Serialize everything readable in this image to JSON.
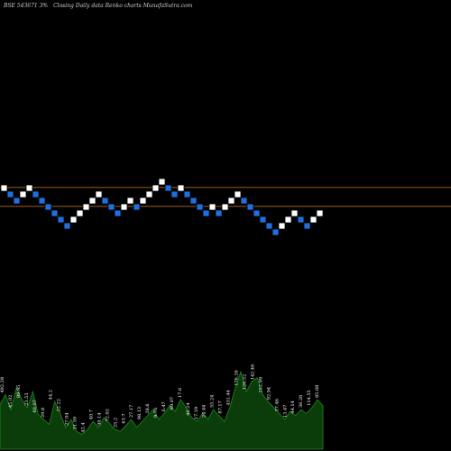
{
  "header": {
    "symbol": "BSE 543671 3%",
    "title": "Closing Daily data  Renko  charts MunafaSutra.com"
  },
  "colors": {
    "background": "#000000",
    "up_brick": "#ffffff",
    "down_brick": "#1e6fe0",
    "brick_border": "#000000",
    "level_line": "#b06a1e",
    "volume_fill": "#0b3d0b",
    "volume_stroke": "#1e8a1e"
  },
  "chart_data": {
    "type": "renko",
    "brick_size_percent": 3,
    "bricks": [
      {
        "dir": "up",
        "level": 21
      },
      {
        "dir": "down",
        "level": 20
      },
      {
        "dir": "down",
        "level": 19
      },
      {
        "dir": "up",
        "level": 20
      },
      {
        "dir": "up",
        "level": 21
      },
      {
        "dir": "down",
        "level": 20
      },
      {
        "dir": "down",
        "level": 19
      },
      {
        "dir": "down",
        "level": 18
      },
      {
        "dir": "down",
        "level": 17
      },
      {
        "dir": "down",
        "level": 16
      },
      {
        "dir": "down",
        "level": 15
      },
      {
        "dir": "up",
        "level": 16
      },
      {
        "dir": "up",
        "level": 17
      },
      {
        "dir": "up",
        "level": 18
      },
      {
        "dir": "up",
        "level": 19
      },
      {
        "dir": "up",
        "level": 20
      },
      {
        "dir": "down",
        "level": 19
      },
      {
        "dir": "down",
        "level": 18
      },
      {
        "dir": "down",
        "level": 17
      },
      {
        "dir": "up",
        "level": 18
      },
      {
        "dir": "up",
        "level": 19
      },
      {
        "dir": "down",
        "level": 18
      },
      {
        "dir": "up",
        "level": 19
      },
      {
        "dir": "up",
        "level": 20
      },
      {
        "dir": "up",
        "level": 21
      },
      {
        "dir": "up",
        "level": 22
      },
      {
        "dir": "down",
        "level": 21
      },
      {
        "dir": "down",
        "level": 20
      },
      {
        "dir": "up",
        "level": 21
      },
      {
        "dir": "down",
        "level": 20
      },
      {
        "dir": "down",
        "level": 19
      },
      {
        "dir": "down",
        "level": 18
      },
      {
        "dir": "down",
        "level": 17
      },
      {
        "dir": "up",
        "level": 18
      },
      {
        "dir": "down",
        "level": 17
      },
      {
        "dir": "up",
        "level": 18
      },
      {
        "dir": "up",
        "level": 19
      },
      {
        "dir": "up",
        "level": 20
      },
      {
        "dir": "down",
        "level": 19
      },
      {
        "dir": "down",
        "level": 18
      },
      {
        "dir": "down",
        "level": 17
      },
      {
        "dir": "down",
        "level": 16
      },
      {
        "dir": "down",
        "level": 15
      },
      {
        "dir": "down",
        "level": 14
      },
      {
        "dir": "up",
        "level": 15
      },
      {
        "dir": "up",
        "level": 16
      },
      {
        "dir": "up",
        "level": 17
      },
      {
        "dir": "down",
        "level": 16
      },
      {
        "dir": "down",
        "level": 15
      },
      {
        "dir": "up",
        "level": 16
      },
      {
        "dir": "up",
        "level": 17
      }
    ],
    "reference_levels": [
      21.6,
      18.6
    ],
    "volume": [
      0.45,
      0.55,
      0.4,
      0.62,
      0.5,
      0.42,
      0.58,
      0.35,
      0.3,
      0.25,
      0.48,
      0.36,
      0.22,
      0.3,
      0.18,
      0.15,
      0.2,
      0.28,
      0.22,
      0.32,
      0.26,
      0.2,
      0.18,
      0.24,
      0.3,
      0.22,
      0.28,
      0.34,
      0.4,
      0.3,
      0.36,
      0.44,
      0.38,
      0.5,
      0.42,
      0.32,
      0.28,
      0.36,
      0.3,
      0.4,
      0.34,
      0.28,
      0.42,
      0.62,
      0.78,
      0.58,
      0.68,
      0.72,
      0.55,
      0.48,
      0.42,
      0.36,
      0.3,
      0.38,
      0.34,
      0.4,
      0.36,
      0.42,
      0.5,
      0.44
    ],
    "volume_labels": [
      "492.28",
      "45.02",
      "89.95",
      "23.53",
      "60.07",
      "29.8",
      "44.2",
      "22.22",
      "27.04",
      "31.59",
      "42.4",
      "40.7",
      "30.14",
      "72.02",
      "25.2",
      "63.7",
      "27.17",
      "98.13",
      "38.6",
      "9.76",
      "6.47",
      "89.07",
      "17.6",
      "40.24",
      "17.19",
      "24.44",
      "55.24",
      "87.17",
      "431.44",
      "176.26",
      "126.52",
      "142.46",
      "152.99",
      "92.94",
      "37.46",
      "13.47",
      "44.14",
      "36.26",
      "114.55",
      "85.08"
    ]
  }
}
